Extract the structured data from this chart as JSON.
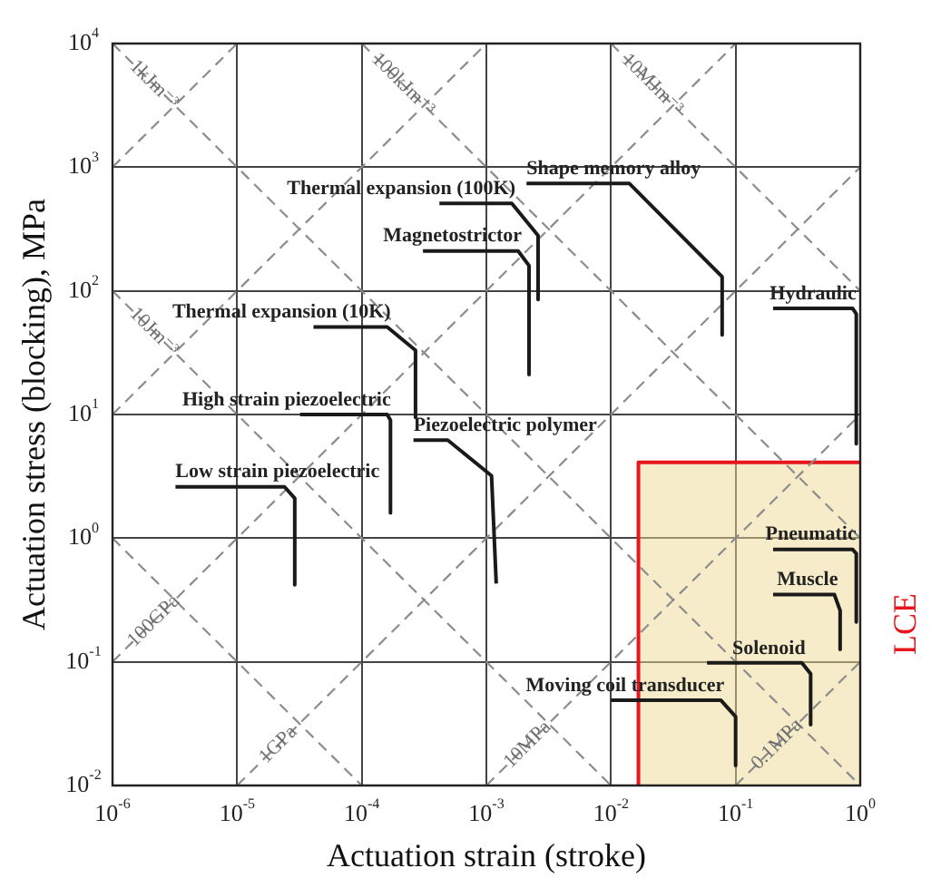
{
  "chart_data": {
    "type": "line",
    "xlabel": "Actuation strain (stroke)",
    "ylabel": "Actuation stress (blocking), MPa",
    "log": "xy",
    "grid": true,
    "marker": "none",
    "xlim": [
      1e-06,
      1
    ],
    "ylim": [
      0.01,
      10000
    ],
    "xticks": [
      {
        "value": 1e-06,
        "label": "10$^{-6}$"
      },
      {
        "value": 1e-05,
        "label": "10$^{-5}$"
      },
      {
        "value": 0.0001,
        "label": "10$^{-4}$"
      },
      {
        "value": 0.001,
        "label": "10$^{-3}$"
      },
      {
        "value": 0.01,
        "label": "10$^{-2}$"
      },
      {
        "value": 0.1,
        "label": "10$^{-1}$"
      },
      {
        "value": 1,
        "label": "10$^{0}$"
      }
    ],
    "yticks": [
      {
        "value": 0.01,
        "label": "10$^{-2}$"
      },
      {
        "value": 0.1,
        "label": "10$^{-1}$"
      },
      {
        "value": 1,
        "label": "10$^{0}$"
      },
      {
        "value": 10,
        "label": "10$^{1}$"
      },
      {
        "value": 100,
        "label": "10$^{2}$"
      },
      {
        "value": 1000,
        "label": "10$^{3}$"
      },
      {
        "value": 10000,
        "label": "10$^{4}$"
      }
    ],
    "series": [
      {
        "name": "LCE",
        "type": "area",
        "color": "#e8161b",
        "line_style": "solid",
        "x": [
          0.0166,
          0.0166,
          1
        ],
        "values": [
          0.01,
          4.1,
          4.1
        ]
      },
      {
        "type": "line",
        "color": "#8c8c8c",
        "line_style": "dashed",
        "x": [
          1e-06,
          0.0001
        ],
        "values": [
          1,
          0.01
        ]
      },
      {
        "name": "10Jm⁻³",
        "type": "line",
        "color": "#8c8c8c",
        "line_style": "dashed",
        "x": [
          1e-06,
          0.01
        ],
        "values": [
          100,
          0.01
        ]
      },
      {
        "name": "1kJm⁻³",
        "type": "line",
        "color": "#8c8c8c",
        "line_style": "dashed",
        "x": [
          1e-06,
          1
        ],
        "values": [
          10000,
          0.01
        ]
      },
      {
        "name": "100kJm⁻³",
        "type": "line",
        "color": "#8c8c8c",
        "line_style": "dashed",
        "x": [
          0.0001,
          1
        ],
        "values": [
          10000,
          1
        ]
      },
      {
        "name": "10MJm⁻³",
        "type": "line",
        "color": "#8c8c8c",
        "line_style": "dashed",
        "x": [
          0.01,
          1
        ],
        "values": [
          10000,
          100
        ]
      },
      {
        "type": "line",
        "color": "#8c8c8c",
        "line_style": "dashed",
        "x": [
          1e-06,
          1e-05
        ],
        "values": [
          1000,
          10000
        ]
      },
      {
        "type": "line",
        "color": "#8c8c8c",
        "line_style": "dashed",
        "x": [
          1e-06,
          0.001
        ],
        "values": [
          10,
          10000
        ]
      },
      {
        "name": "100GPa",
        "type": "line",
        "color": "#8c8c8c",
        "line_style": "dashed",
        "x": [
          1e-06,
          0.1
        ],
        "values": [
          0.1,
          10000
        ]
      },
      {
        "name": "1GPa",
        "type": "line",
        "color": "#8c8c8c",
        "line_style": "dashed",
        "x": [
          1e-05,
          1
        ],
        "values": [
          0.01,
          1000
        ]
      },
      {
        "name": "10MPa",
        "type": "line",
        "color": "#8c8c8c",
        "line_style": "dashed",
        "x": [
          0.001,
          1
        ],
        "values": [
          0.01,
          10
        ]
      },
      {
        "name": "0.1MPa",
        "type": "line",
        "color": "#8c8c8c",
        "line_style": "dashed",
        "x": [
          0.1,
          1
        ],
        "values": [
          0.01,
          0.1
        ]
      },
      {
        "name": "Thermal expansion (100K)",
        "type": "line",
        "color": "#1a1a1a",
        "line_style": "solid",
        "x": [
          0.00042,
          0.0016,
          0.0026,
          0.0026
        ],
        "values": [
          510,
          510,
          280,
          85
        ]
      },
      {
        "name": "Magnetostrictor",
        "type": "line",
        "color": "#1a1a1a",
        "line_style": "solid",
        "x": [
          0.00031,
          0.0018,
          0.0022,
          0.0022
        ],
        "values": [
          210,
          210,
          160,
          21
        ]
      },
      {
        "name": "Shape memory alloy",
        "type": "line",
        "color": "#1a1a1a",
        "line_style": "solid",
        "x": [
          0.0021,
          0.014,
          0.078,
          0.078
        ],
        "values": [
          740,
          740,
          130,
          44
        ]
      },
      {
        "name": "Hydraulic",
        "type": "line",
        "color": "#1a1a1a",
        "line_style": "solid",
        "x": [
          0.2,
          0.87,
          0.93,
          0.93
        ],
        "values": [
          72,
          72,
          65,
          5.8
        ]
      },
      {
        "name": "Thermal expansion (10K)",
        "type": "line",
        "color": "#1a1a1a",
        "line_style": "solid",
        "x": [
          4.1e-05,
          0.00016,
          0.00027,
          0.00027
        ],
        "values": [
          51,
          51,
          33,
          9.5
        ]
      },
      {
        "name": "High strain piezoelectric",
        "type": "line",
        "color": "#1a1a1a",
        "line_style": "solid",
        "x": [
          3.2e-05,
          0.00016,
          0.00017,
          0.00017
        ],
        "values": [
          10,
          10,
          9,
          1.6
        ]
      },
      {
        "name": "Low strain piezoelectric",
        "type": "line",
        "color": "#1a1a1a",
        "line_style": "solid",
        "x": [
          3.2e-06,
          2.4e-05,
          2.9e-05,
          2.9e-05
        ],
        "values": [
          2.6,
          2.6,
          2.1,
          0.42
        ]
      },
      {
        "name": "Piezoelectric polymer",
        "type": "line",
        "color": "#1a1a1a",
        "line_style": "solid",
        "x": [
          0.00026,
          0.00049,
          0.0011,
          0.0012
        ],
        "values": [
          6.2,
          6.2,
          3.2,
          0.43
        ]
      },
      {
        "name": "Pneumatic",
        "type": "line",
        "color": "#1a1a1a",
        "line_style": "solid",
        "x": [
          0.2,
          0.87,
          0.93,
          0.93
        ],
        "values": [
          0.81,
          0.81,
          0.75,
          0.21
        ]
      },
      {
        "name": "Muscle",
        "type": "line",
        "color": "#1a1a1a",
        "line_style": "solid",
        "x": [
          0.2,
          0.62,
          0.69,
          0.69
        ],
        "values": [
          0.35,
          0.35,
          0.26,
          0.126
        ]
      },
      {
        "name": "Solenoid",
        "type": "line",
        "color": "#1a1a1a",
        "line_style": "solid",
        "x": [
          0.059,
          0.34,
          0.4,
          0.4
        ],
        "values": [
          0.098,
          0.098,
          0.08,
          0.031
        ]
      },
      {
        "name": "Moving coil transducer",
        "type": "line",
        "color": "#1a1a1a",
        "line_style": "solid",
        "x": [
          0.01,
          0.076,
          0.1,
          0.1
        ],
        "values": [
          0.049,
          0.049,
          0.036,
          0.0145
        ]
      }
    ]
  }
}
